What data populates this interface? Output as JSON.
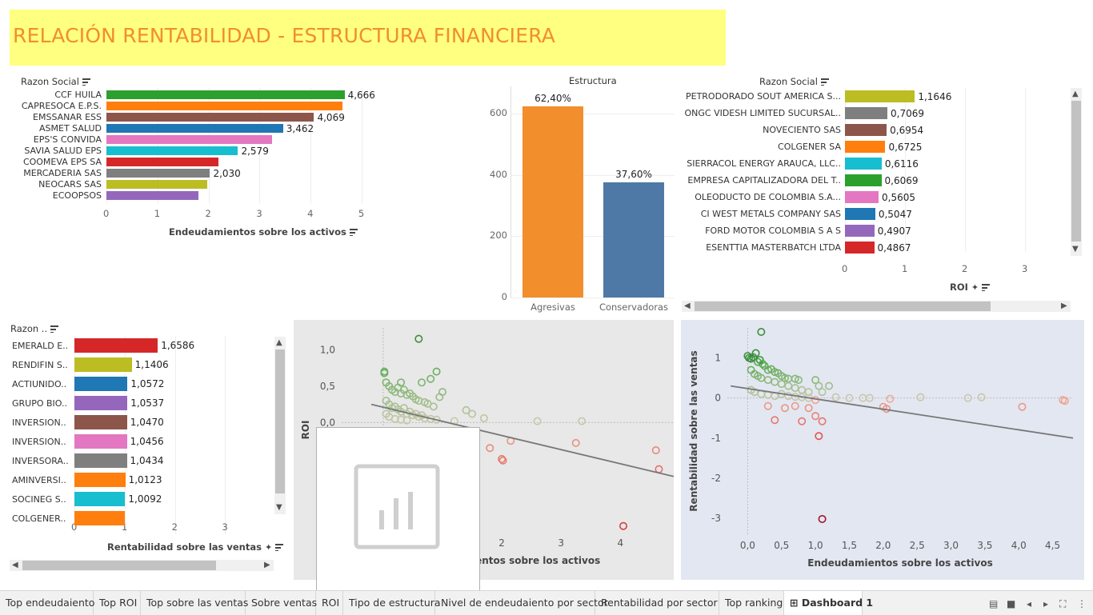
{
  "dashboard": {
    "title": "RELACIÓN RENTABILIDAD - ESTRUCTURA FINANCIERA"
  },
  "chart_data": [
    {
      "id": "top-endeudamiento",
      "type": "bar",
      "orientation": "horizontal",
      "row_header": "Razon Social",
      "xlabel": "Endeudamientos sobre los activos",
      "categories": [
        "CCF HUILA",
        "CAPRESOCA E.P.S.",
        "EMSSANAR ESS",
        "ASMET SALUD",
        "EPS'S CONVIDA",
        "SAVIA SALUD EPS",
        "COOMEVA EPS SA",
        "MERCADERIA SAS",
        "NEOCARS SAS",
        "ECOOPSOS"
      ],
      "values": [
        4.666,
        4.62,
        4.069,
        3.462,
        3.24,
        2.579,
        2.2,
        2.03,
        1.97,
        1.8
      ],
      "data_labels": [
        "4,666",
        "",
        "4,069",
        "3,462",
        "",
        "2,579",
        "",
        "2,030",
        "",
        ""
      ],
      "colors": [
        "#2ca02c",
        "#ff7f0e",
        "#8c564b",
        "#1f77b4",
        "#e377c2",
        "#17becf",
        "#d62728",
        "#7f7f7f",
        "#bcbd22",
        "#9467bd"
      ],
      "xticks": [
        "0",
        "1",
        "2",
        "3",
        "4",
        "5"
      ],
      "xlim": [
        0,
        5.3
      ]
    },
    {
      "id": "estructura",
      "type": "bar",
      "title": "Estructura",
      "categories": [
        "Agresivas",
        "Conservadoras"
      ],
      "values": [
        624,
        376
      ],
      "data_labels": [
        "62,40%",
        "37,60%"
      ],
      "colors": [
        "#f28e2b",
        "#4e79a7"
      ],
      "yticks": [
        "0",
        "200",
        "400",
        "600"
      ],
      "ylim": [
        0,
        690
      ]
    },
    {
      "id": "top-roi",
      "type": "bar",
      "orientation": "horizontal",
      "row_header": "Razon Social",
      "xlabel": "ROI",
      "categories": [
        "PETRODORADO SOUT AMERICA S...",
        "ONGC VIDESH LIMITED SUCURSAL..",
        "NOVECIENTO SAS",
        "COLGENER SA",
        "SIERRACOL ENERGY ARAUCA, LLC..",
        "EMPRESA CAPITALIZADORA DEL T..",
        "OLEODUCTO DE COLOMBIA S.A...",
        "CI WEST METALS COMPANY SAS",
        "FORD MOTOR COLOMBIA S A S",
        "ESENTTIA MASTERBATCH LTDA"
      ],
      "values": [
        1.1646,
        0.7069,
        0.6954,
        0.6725,
        0.6116,
        0.6069,
        0.5605,
        0.5047,
        0.4907,
        0.4867
      ],
      "data_labels": [
        "1,1646",
        "0,7069",
        "0,6954",
        "0,6725",
        "0,6116",
        "0,6069",
        "0,5605",
        "0,5047",
        "0,4907",
        "0,4867"
      ],
      "colors": [
        "#bcbd22",
        "#7f7f7f",
        "#8c564b",
        "#ff7f0e",
        "#17becf",
        "#2ca02c",
        "#e377c2",
        "#1f77b4",
        "#9467bd",
        "#d62728"
      ],
      "xticks": [
        "0",
        "1",
        "2",
        "3"
      ],
      "xlim": [
        0,
        4
      ]
    },
    {
      "id": "top-rentabilidad-ventas",
      "type": "bar",
      "orientation": "horizontal",
      "row_header": "Razon ..",
      "xlabel": "Rentabilidad sobre las ventas",
      "categories": [
        "EMERALD E..",
        "RENDIFIN S..",
        "ACTIUNIDO..",
        "GRUPO BIO..",
        "INVERSION..",
        "INVERSION..",
        "INVERSORA..",
        "AMINVERSI..",
        "SOCINEG S..",
        "COLGENER.."
      ],
      "values": [
        1.6586,
        1.1406,
        1.0572,
        1.0537,
        1.047,
        1.0456,
        1.0434,
        1.0123,
        1.0092,
        1.0
      ],
      "data_labels": [
        "1,6586",
        "1,1406",
        "1,0572",
        "1,0537",
        "1,0470",
        "1,0456",
        "1,0434",
        "1,0123",
        "1,0092",
        ""
      ],
      "colors": [
        "#d62728",
        "#bcbd22",
        "#1f77b4",
        "#9467bd",
        "#8c564b",
        "#e377c2",
        "#7f7f7f",
        "#ff7f0e",
        "#17becf",
        "#ff7f0e"
      ],
      "xticks": [
        "0",
        "1",
        "2",
        "3"
      ],
      "xlim": [
        0,
        3.9
      ]
    },
    {
      "id": "scatter-roi",
      "type": "scatter",
      "xlabel": "Endeudamientos sobre los activos",
      "ylabel": "ROI",
      "xticks": [
        "2",
        "3",
        "4"
      ],
      "yticks": [
        "1,0",
        "0,5",
        "0,0"
      ],
      "xlim": [
        -0.7,
        4.9
      ],
      "ylim": [
        -1.5,
        1.3
      ],
      "trend": [
        [
          -0.2,
          0.25
        ],
        [
          4.9,
          -0.74
        ]
      ],
      "points": [
        [
          0.6,
          1.15
        ],
        [
          0.02,
          0.7
        ],
        [
          0.02,
          0.68
        ],
        [
          0.9,
          0.7
        ],
        [
          0.8,
          0.6
        ],
        [
          0.65,
          0.55
        ],
        [
          0.3,
          0.55
        ],
        [
          1.0,
          0.42
        ],
        [
          0.95,
          0.35
        ],
        [
          0.05,
          0.55
        ],
        [
          0.1,
          0.5
        ],
        [
          0.15,
          0.45
        ],
        [
          0.2,
          0.42
        ],
        [
          0.25,
          0.48
        ],
        [
          0.3,
          0.4
        ],
        [
          0.35,
          0.45
        ],
        [
          0.4,
          0.38
        ],
        [
          0.45,
          0.4
        ],
        [
          0.5,
          0.36
        ],
        [
          0.55,
          0.32
        ],
        [
          0.6,
          0.3
        ],
        [
          0.7,
          0.28
        ],
        [
          0.75,
          0.26
        ],
        [
          0.85,
          0.22
        ],
        [
          0.05,
          0.3
        ],
        [
          0.1,
          0.25
        ],
        [
          0.15,
          0.2
        ],
        [
          0.2,
          0.22
        ],
        [
          0.25,
          0.18
        ],
        [
          0.3,
          0.15
        ],
        [
          0.35,
          0.2
        ],
        [
          0.4,
          0.12
        ],
        [
          0.45,
          0.15
        ],
        [
          0.5,
          0.1
        ],
        [
          0.55,
          0.12
        ],
        [
          0.6,
          0.08
        ],
        [
          0.65,
          0.1
        ],
        [
          0.7,
          0.06
        ],
        [
          0.8,
          0.05
        ],
        [
          0.9,
          0.04
        ],
        [
          0.05,
          0.12
        ],
        [
          0.1,
          0.08
        ],
        [
          0.2,
          0.05
        ],
        [
          0.3,
          0.04
        ],
        [
          0.4,
          0.03
        ],
        [
          1.4,
          0.17
        ],
        [
          1.5,
          0.12
        ],
        [
          1.7,
          0.06
        ],
        [
          2.6,
          0.02
        ],
        [
          3.35,
          0.02
        ],
        [
          1.2,
          0.02
        ],
        [
          1.8,
          -0.35
        ],
        [
          2.15,
          -0.25
        ],
        [
          2.0,
          -0.5
        ],
        [
          2.02,
          -0.52
        ],
        [
          3.25,
          -0.28
        ],
        [
          4.6,
          -0.38
        ],
        [
          4.65,
          -0.64
        ],
        [
          4.05,
          -1.42
        ]
      ]
    },
    {
      "id": "scatter-rentabilidad",
      "type": "scatter",
      "xlabel": "Endeudamientos sobre los activos",
      "ylabel": "Rentabilidad sobre las ventas",
      "xticks": [
        "0,0",
        "0,5",
        "1,0",
        "1,5",
        "2,0",
        "2,5",
        "3,0",
        "3,5",
        "4,0",
        "4,5"
      ],
      "yticks": [
        "1",
        "0",
        "-1",
        "-2",
        "-3"
      ],
      "xlim": [
        -0.3,
        4.8
      ],
      "ylim": [
        -3.4,
        1.75
      ],
      "trend": [
        [
          -0.25,
          0.3
        ],
        [
          4.8,
          -1.0
        ]
      ],
      "points": [
        [
          0.2,
          1.65
        ],
        [
          0.0,
          1.05
        ],
        [
          0.02,
          1.0
        ],
        [
          0.05,
          0.98
        ],
        [
          0.08,
          1.02
        ],
        [
          0.12,
          1.12
        ],
        [
          0.15,
          0.9
        ],
        [
          0.18,
          0.95
        ],
        [
          0.22,
          0.85
        ],
        [
          0.25,
          0.8
        ],
        [
          0.3,
          0.7
        ],
        [
          0.35,
          0.72
        ],
        [
          0.4,
          0.65
        ],
        [
          0.45,
          0.62
        ],
        [
          0.5,
          0.55
        ],
        [
          0.55,
          0.5
        ],
        [
          0.6,
          0.48
        ],
        [
          0.7,
          0.48
        ],
        [
          0.75,
          0.45
        ],
        [
          0.05,
          0.7
        ],
        [
          0.1,
          0.6
        ],
        [
          0.15,
          0.55
        ],
        [
          0.2,
          0.5
        ],
        [
          0.3,
          0.45
        ],
        [
          0.4,
          0.4
        ],
        [
          0.5,
          0.35
        ],
        [
          0.6,
          0.3
        ],
        [
          0.7,
          0.25
        ],
        [
          0.8,
          0.2
        ],
        [
          0.9,
          0.15
        ],
        [
          1.0,
          0.45
        ],
        [
          1.05,
          0.3
        ],
        [
          1.2,
          0.3
        ],
        [
          1.1,
          0.15
        ],
        [
          0.05,
          0.2
        ],
        [
          0.1,
          0.15
        ],
        [
          0.2,
          0.1
        ],
        [
          0.3,
          0.08
        ],
        [
          0.4,
          0.05
        ],
        [
          0.5,
          0.1
        ],
        [
          0.6,
          0.05
        ],
        [
          0.7,
          0.03
        ],
        [
          0.8,
          0.02
        ],
        [
          0.9,
          0.0
        ],
        [
          1.0,
          -0.05
        ],
        [
          1.3,
          0.02
        ],
        [
          1.5,
          0.0
        ],
        [
          1.7,
          0.0
        ],
        [
          1.8,
          0.0
        ],
        [
          2.1,
          -0.02
        ],
        [
          2.55,
          0.02
        ],
        [
          3.25,
          0.0
        ],
        [
          3.45,
          0.02
        ],
        [
          4.65,
          -0.05
        ],
        [
          4.68,
          -0.07
        ],
        [
          0.3,
          -0.2
        ],
        [
          0.4,
          -0.55
        ],
        [
          0.55,
          -0.25
        ],
        [
          0.7,
          -0.2
        ],
        [
          0.8,
          -0.58
        ],
        [
          0.9,
          -0.25
        ],
        [
          1.0,
          -0.45
        ],
        [
          1.05,
          -0.95
        ],
        [
          1.1,
          -0.58
        ],
        [
          2.0,
          -0.22
        ],
        [
          2.05,
          -0.27
        ],
        [
          4.05,
          -0.22
        ],
        [
          1.1,
          -3.02
        ]
      ]
    }
  ],
  "tabs": [
    {
      "label": "Top endeudaiento"
    },
    {
      "label": "Top ROI"
    },
    {
      "label": "Top sobre las ventas"
    },
    {
      "label": "Sobre ventas"
    },
    {
      "label": "ROI"
    },
    {
      "label": "Tipo de estructura"
    },
    {
      "label": "Nivel de endeudaiento por sector"
    },
    {
      "label": "Rentabilidad por sector"
    },
    {
      "label": "Top ranking"
    },
    {
      "label": "Dashboard 1",
      "active": true
    }
  ],
  "icons": {
    "sort": "sort-descending-icon",
    "pin": "pin-icon",
    "chart_placeholder": "bar-chart-placeholder-icon",
    "dashboard_tab": "dashboard-grid-icon",
    "nav": [
      "filmstrip-icon",
      "sheet-icon",
      "previous-icon",
      "next-icon",
      "fit-icon",
      "more-icon"
    ]
  }
}
